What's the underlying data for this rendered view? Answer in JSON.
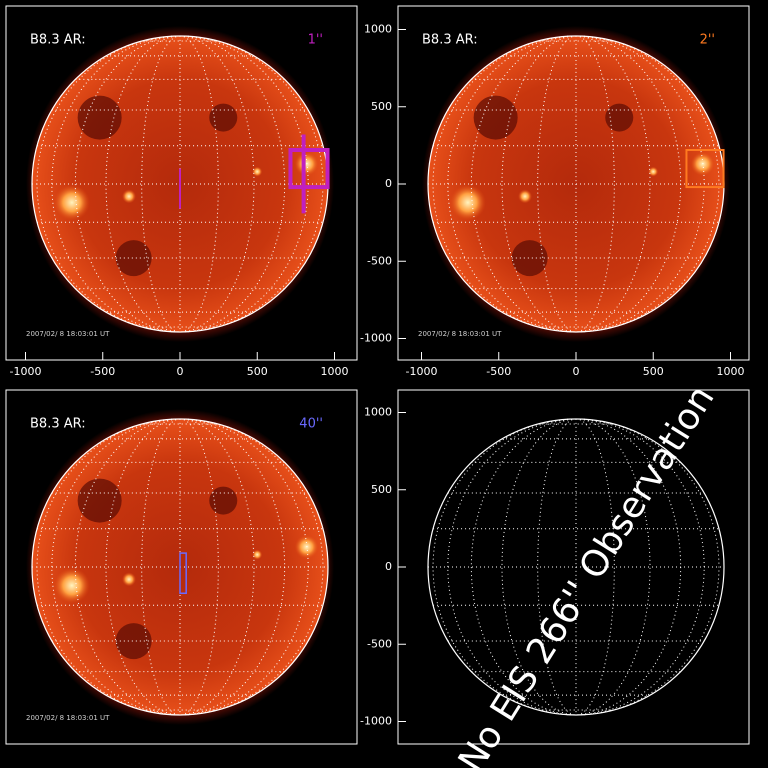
{
  "panels": [
    {
      "label": "B8.3 AR:",
      "fov": "1''",
      "fov_color": "#c020c0",
      "timestamp": "2007/02/ 8 18:03:01 UT",
      "xticks": [
        -1000,
        -500,
        0,
        500,
        1000
      ]
    },
    {
      "label": "B8.3 AR:",
      "fov": "2''",
      "fov_color": "#ff7a20",
      "timestamp": "2007/02/ 8 18:03:01 UT",
      "xticks": [
        -1000,
        -500,
        0,
        500,
        1000
      ],
      "yticks": [
        1000,
        500,
        0,
        -500,
        -1000
      ]
    },
    {
      "label": "B8.3 AR:",
      "fov": "40''",
      "fov_color": "#6a6aff",
      "timestamp": "2007/02/ 8 18:03:01 UT"
    },
    {
      "yticks": [
        1000,
        500,
        0,
        -500,
        -1000
      ]
    }
  ],
  "notice": "No EIS 266'' Observation"
}
